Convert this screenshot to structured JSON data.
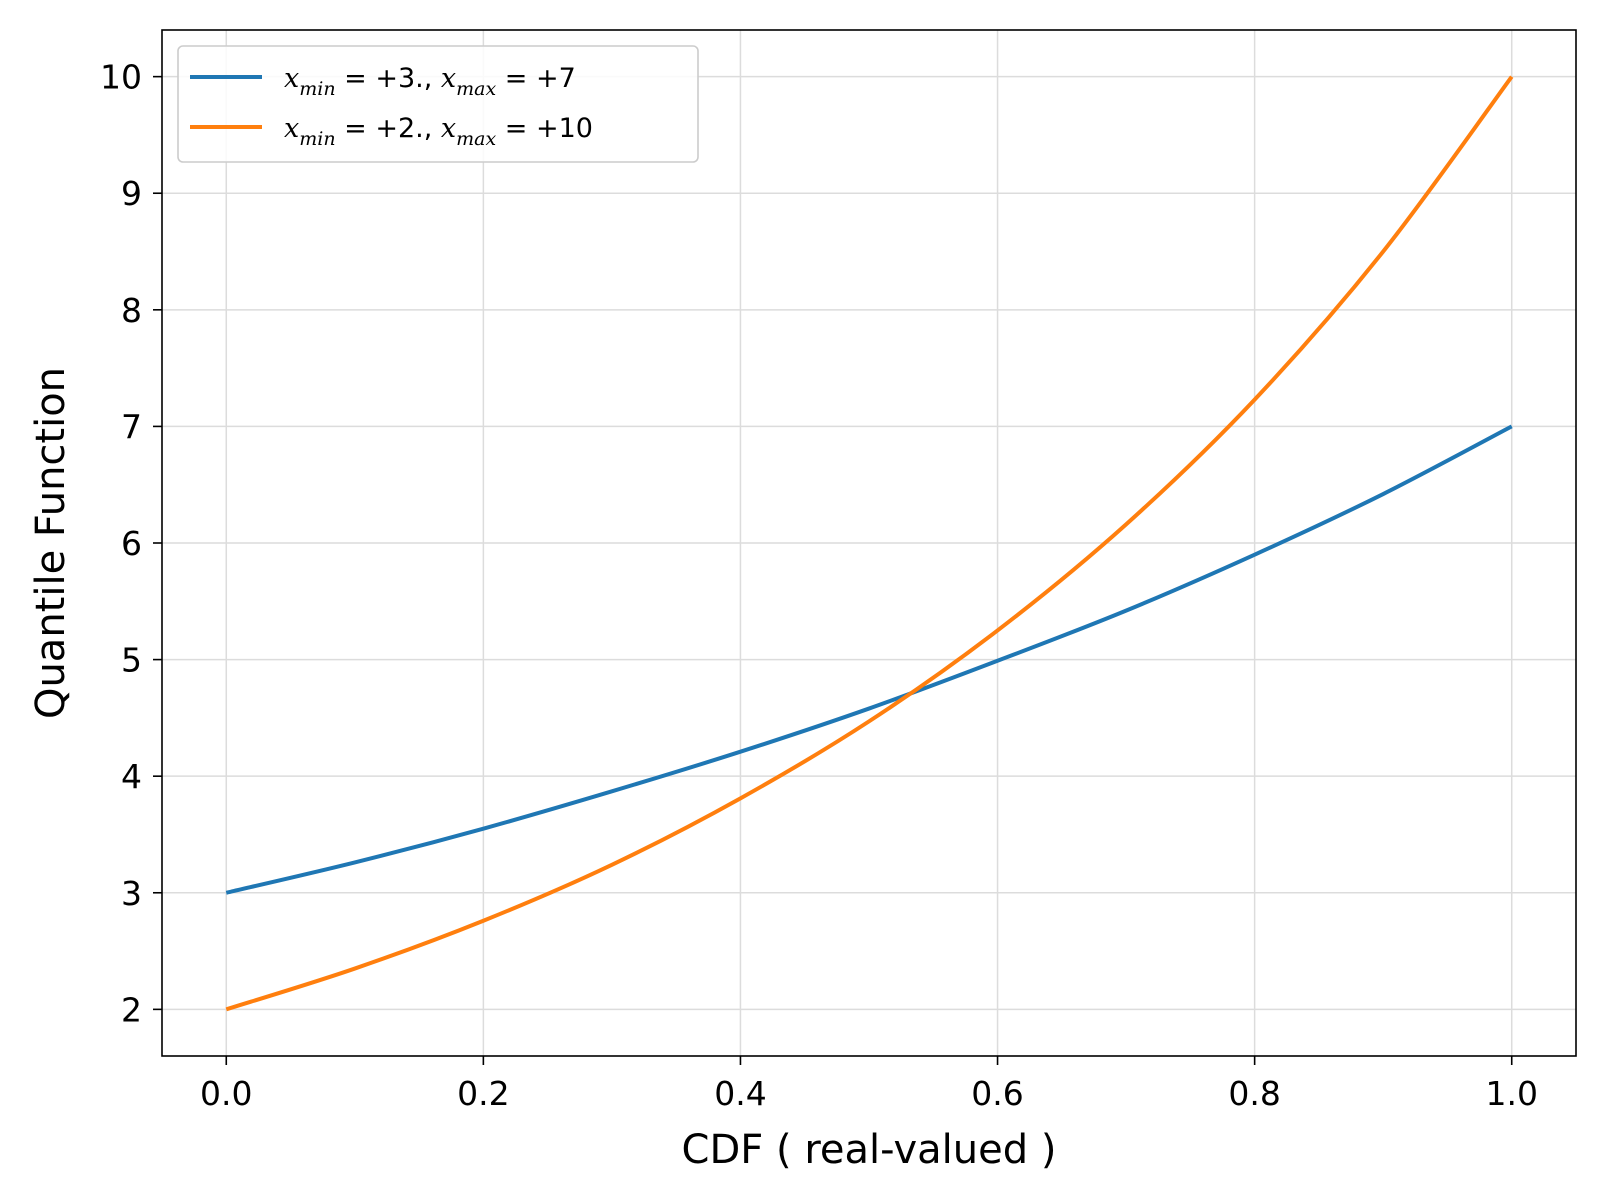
{
  "chart_data": {
    "type": "line",
    "title": "",
    "xlabel": "CDF ( real-valued )",
    "ylabel": "Quantile Function",
    "xlim": [
      -0.05,
      1.05
    ],
    "ylim": [
      1.6,
      10.4
    ],
    "xticks": [
      0.0,
      0.2,
      0.4,
      0.6,
      0.8,
      1.0
    ],
    "xtick_labels": [
      "0.0",
      "0.2",
      "0.4",
      "0.6",
      "0.8",
      "1.0"
    ],
    "yticks": [
      2,
      3,
      4,
      5,
      6,
      7,
      8,
      9,
      10
    ],
    "ytick_labels": [
      "2",
      "3",
      "4",
      "5",
      "6",
      "7",
      "8",
      "9",
      "10"
    ],
    "grid": true,
    "legend_position": "top-left",
    "series": [
      {
        "name": "x_min = +3., x_max = +7",
        "legend": {
          "lhs1": "x",
          "sub1": "min",
          "mid": " = +3., ",
          "lhs2": "x",
          "sub2": "max",
          "rhs": " = +7"
        },
        "color": "#1f77b4",
        "x": [
          0.0,
          0.1,
          0.2,
          0.3,
          0.4,
          0.5,
          0.6,
          0.7,
          0.8,
          0.9,
          1.0
        ],
        "y": [
          3.0,
          3.26,
          3.55,
          3.87,
          4.21,
          4.58,
          4.99,
          5.42,
          5.9,
          6.42,
          7.0
        ]
      },
      {
        "name": "x_min = +2., x_max = +10",
        "legend": {
          "lhs1": "x",
          "sub1": "min",
          "mid": " = +2., ",
          "lhs2": "x",
          "sub2": "max",
          "rhs": " = +10"
        },
        "color": "#ff7f0e",
        "x": [
          0.0,
          0.1,
          0.2,
          0.3,
          0.4,
          0.5,
          0.6,
          0.7,
          0.8,
          0.9,
          1.0
        ],
        "y": [
          2.0,
          2.35,
          2.76,
          3.24,
          3.81,
          4.47,
          5.25,
          6.16,
          7.23,
          8.5,
          10.0
        ]
      }
    ]
  }
}
